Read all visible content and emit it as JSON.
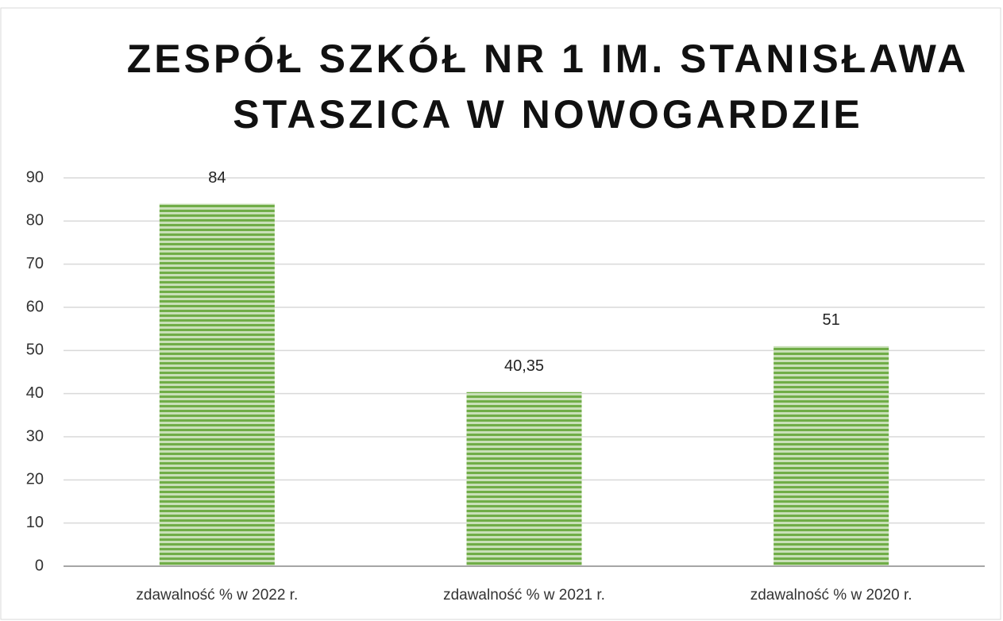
{
  "chart_data": {
    "type": "bar",
    "title": [
      "ZESPÓŁ SZKÓŁ NR 1 IM. STANISŁAWA",
      "STASZICA W NOWOGARDZIE"
    ],
    "categories": [
      "zdawalność % w 2022 r.",
      "zdawalność % w 2021 r.",
      "zdawalność % w 2020 r."
    ],
    "values": [
      84,
      40.35,
      51
    ],
    "value_labels": [
      "84",
      "40,35",
      "51"
    ],
    "color": "#70ad47",
    "ylim": [
      0,
      90
    ],
    "yticks": [
      0,
      10,
      20,
      30,
      40,
      50,
      60,
      70,
      80,
      90
    ],
    "grid": true
  }
}
